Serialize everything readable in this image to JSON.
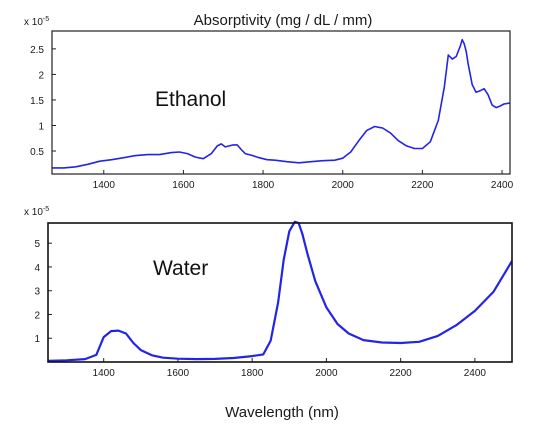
{
  "title": "Absorptivity (mg / dL / mm)",
  "xlabel": "Wavelength (nm)",
  "line_color": "#2424e6",
  "chart_data": [
    {
      "type": "line",
      "label": "Ethanol",
      "multiplier": {
        "base": "x 10",
        "exponent": "-5"
      },
      "xlim": [
        1270,
        2420
      ],
      "ylim": [
        0.05,
        2.85
      ],
      "xticks": [
        1400,
        1600,
        1800,
        2000,
        2200,
        2400
      ],
      "yticks": [
        0.5,
        1,
        1.5,
        2,
        2.5
      ],
      "x": [
        1270,
        1300,
        1330,
        1360,
        1390,
        1420,
        1450,
        1480,
        1510,
        1540,
        1570,
        1590,
        1610,
        1630,
        1650,
        1670,
        1685,
        1695,
        1705,
        1715,
        1725,
        1735,
        1745,
        1755,
        1770,
        1790,
        1810,
        1830,
        1860,
        1890,
        1920,
        1950,
        1980,
        2000,
        2020,
        2040,
        2060,
        2080,
        2100,
        2120,
        2140,
        2160,
        2180,
        2200,
        2220,
        2240,
        2255,
        2265,
        2275,
        2285,
        2295,
        2300,
        2305,
        2310,
        2315,
        2325,
        2335,
        2345,
        2355,
        2365,
        2375,
        2385,
        2395,
        2405,
        2420
      ],
      "values": [
        0.17,
        0.17,
        0.19,
        0.24,
        0.3,
        0.33,
        0.37,
        0.41,
        0.43,
        0.43,
        0.47,
        0.48,
        0.45,
        0.38,
        0.35,
        0.45,
        0.6,
        0.64,
        0.58,
        0.6,
        0.62,
        0.62,
        0.53,
        0.45,
        0.42,
        0.37,
        0.33,
        0.32,
        0.29,
        0.27,
        0.29,
        0.31,
        0.32,
        0.36,
        0.48,
        0.7,
        0.9,
        0.98,
        0.95,
        0.85,
        0.7,
        0.6,
        0.55,
        0.55,
        0.68,
        1.1,
        1.75,
        2.38,
        2.3,
        2.35,
        2.55,
        2.68,
        2.6,
        2.45,
        2.2,
        1.8,
        1.65,
        1.68,
        1.72,
        1.6,
        1.4,
        1.35,
        1.38,
        1.42,
        1.44
      ]
    },
    {
      "type": "line",
      "label": "Water",
      "multiplier": {
        "base": "x 10",
        "exponent": "-5"
      },
      "xlim": [
        1250,
        2500
      ],
      "ylim": [
        0,
        5.85
      ],
      "xticks": [
        1400,
        1600,
        1800,
        2000,
        2200,
        2400
      ],
      "yticks": [
        1,
        2,
        3,
        4,
        5
      ],
      "x": [
        1250,
        1300,
        1350,
        1380,
        1400,
        1420,
        1440,
        1460,
        1480,
        1500,
        1530,
        1560,
        1600,
        1650,
        1700,
        1750,
        1800,
        1830,
        1850,
        1870,
        1885,
        1900,
        1915,
        1925,
        1935,
        1950,
        1970,
        2000,
        2030,
        2060,
        2100,
        2150,
        2200,
        2250,
        2300,
        2350,
        2400,
        2450,
        2500
      ],
      "values": [
        0.05,
        0.07,
        0.12,
        0.3,
        1.05,
        1.3,
        1.32,
        1.2,
        0.8,
        0.5,
        0.28,
        0.18,
        0.14,
        0.12,
        0.13,
        0.17,
        0.25,
        0.32,
        0.9,
        2.5,
        4.3,
        5.5,
        5.9,
        5.85,
        5.4,
        4.5,
        3.4,
        2.3,
        1.6,
        1.2,
        0.92,
        0.82,
        0.8,
        0.85,
        1.1,
        1.55,
        2.15,
        2.95,
        4.25
      ]
    }
  ]
}
